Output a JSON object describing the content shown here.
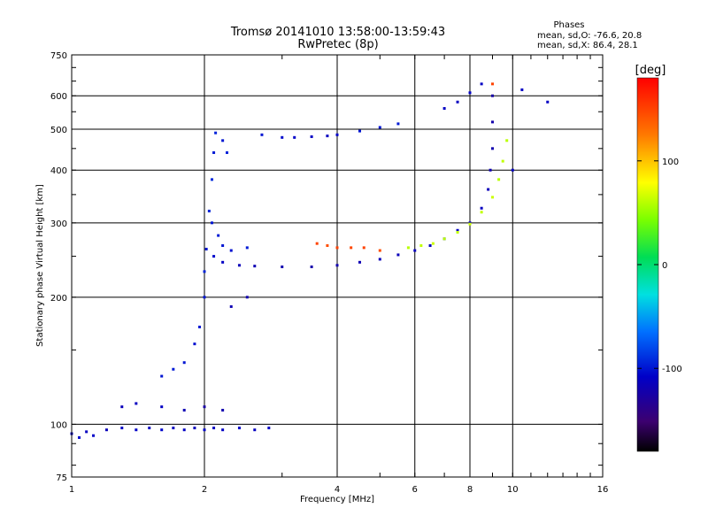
{
  "chart_data": {
    "type": "scatter",
    "title": "Tromsø 20141010 13:58:00-13:59:43",
    "subtitle": "RwPretec (8p)",
    "xlabel": "Frequency [MHz]",
    "ylabel": "Stationary phase Virtual Height [km]",
    "x_scale": "log",
    "y_scale": "log",
    "xlim": [
      1,
      16
    ],
    "ylim": [
      75,
      750
    ],
    "x_ticks": [
      1,
      2,
      4,
      6,
      8,
      10,
      16
    ],
    "y_ticks": [
      75,
      100,
      200,
      300,
      400,
      500,
      600,
      750
    ],
    "grid": true,
    "phases_box": {
      "title": "Phases",
      "line_o": "mean, sd,O: -76.6, 20.8",
      "line_x": "mean, sd,X: 86.4, 28.1"
    },
    "colorbar": {
      "label": "[deg]",
      "range": [
        -180,
        180
      ],
      "ticks": [
        -100,
        0,
        100
      ]
    },
    "points": [
      [
        1.0,
        95,
        -110
      ],
      [
        1.04,
        93,
        -105
      ],
      [
        1.08,
        96,
        -112
      ],
      [
        1.12,
        94,
        -108
      ],
      [
        1.2,
        97,
        -115
      ],
      [
        1.3,
        98,
        -110
      ],
      [
        1.4,
        97,
        -108
      ],
      [
        1.5,
        98,
        -112
      ],
      [
        1.6,
        97,
        -106
      ],
      [
        1.7,
        98,
        -112
      ],
      [
        1.8,
        97,
        -110
      ],
      [
        1.9,
        98,
        -114
      ],
      [
        2.0,
        97,
        -108
      ],
      [
        2.1,
        98,
        -112
      ],
      [
        2.2,
        97,
        -110
      ],
      [
        2.4,
        98,
        -108
      ],
      [
        2.6,
        97,
        -112
      ],
      [
        2.8,
        98,
        -110
      ],
      [
        1.3,
        110,
        -115
      ],
      [
        1.4,
        112,
        -112
      ],
      [
        1.6,
        110,
        -110
      ],
      [
        1.8,
        108,
        -118
      ],
      [
        2.0,
        110,
        -125
      ],
      [
        2.2,
        108,
        -120
      ],
      [
        1.6,
        130,
        -100
      ],
      [
        1.7,
        135,
        -98
      ],
      [
        1.8,
        140,
        -100
      ],
      [
        1.9,
        155,
        -102
      ],
      [
        1.95,
        170,
        -98
      ],
      [
        2.0,
        200,
        -100
      ],
      [
        2.0,
        230,
        -95
      ],
      [
        2.02,
        260,
        -100
      ],
      [
        2.05,
        320,
        -95
      ],
      [
        2.08,
        380,
        -92
      ],
      [
        2.1,
        440,
        -98
      ],
      [
        2.12,
        490,
        -95
      ],
      [
        2.2,
        470,
        -100
      ],
      [
        2.25,
        440,
        -95
      ],
      [
        2.08,
        300,
        -100
      ],
      [
        2.15,
        280,
        -98
      ],
      [
        2.2,
        265,
        -100
      ],
      [
        2.3,
        258,
        -102
      ],
      [
        2.5,
        262,
        -98
      ],
      [
        2.1,
        250,
        -105
      ],
      [
        2.2,
        242,
        -110
      ],
      [
        2.4,
        238,
        -115
      ],
      [
        2.6,
        237,
        -118
      ],
      [
        3.0,
        236,
        -120
      ],
      [
        3.5,
        236,
        -122
      ],
      [
        4.0,
        238,
        -120
      ],
      [
        4.5,
        242,
        -118
      ],
      [
        5.0,
        246,
        -116
      ],
      [
        5.5,
        252,
        -115
      ],
      [
        6.0,
        258,
        -114
      ],
      [
        6.5,
        265,
        -112
      ],
      [
        7.0,
        275,
        -112
      ],
      [
        7.5,
        288,
        -110
      ],
      [
        8.0,
        300,
        -110
      ],
      [
        8.5,
        325,
        -112
      ],
      [
        8.8,
        360,
        -115
      ],
      [
        8.9,
        400,
        -118
      ],
      [
        9.0,
        450,
        -120
      ],
      [
        9.0,
        520,
        -122
      ],
      [
        9.0,
        600,
        -125
      ],
      [
        3.6,
        268,
        150
      ],
      [
        3.8,
        265,
        145
      ],
      [
        4.0,
        262,
        150
      ],
      [
        4.3,
        262,
        148
      ],
      [
        4.6,
        262,
        150
      ],
      [
        5.0,
        258,
        145
      ],
      [
        5.8,
        262,
        60
      ],
      [
        6.2,
        265,
        62
      ],
      [
        6.6,
        268,
        65
      ],
      [
        7.0,
        275,
        60
      ],
      [
        7.5,
        285,
        62
      ],
      [
        8.0,
        298,
        65
      ],
      [
        8.5,
        318,
        62
      ],
      [
        9.0,
        345,
        65
      ],
      [
        9.3,
        380,
        60
      ],
      [
        9.5,
        420,
        62
      ],
      [
        9.7,
        470,
        60
      ],
      [
        2.7,
        485,
        -100
      ],
      [
        3.0,
        478,
        -105
      ],
      [
        3.2,
        478,
        -108
      ],
      [
        3.5,
        480,
        -110
      ],
      [
        3.8,
        482,
        -112
      ],
      [
        4.0,
        485,
        -108
      ],
      [
        4.5,
        495,
        -100
      ],
      [
        5.0,
        505,
        -100
      ],
      [
        5.5,
        515,
        -98
      ],
      [
        7.0,
        560,
        -110
      ],
      [
        7.5,
        580,
        -112
      ],
      [
        8.0,
        610,
        -108
      ],
      [
        8.5,
        640,
        -110
      ],
      [
        2.3,
        190,
        -118
      ],
      [
        2.5,
        200,
        -120
      ],
      [
        10.5,
        620,
        -110
      ],
      [
        12.0,
        580,
        -110
      ],
      [
        10.0,
        400,
        -110
      ],
      [
        9.0,
        640,
        150
      ]
    ]
  }
}
